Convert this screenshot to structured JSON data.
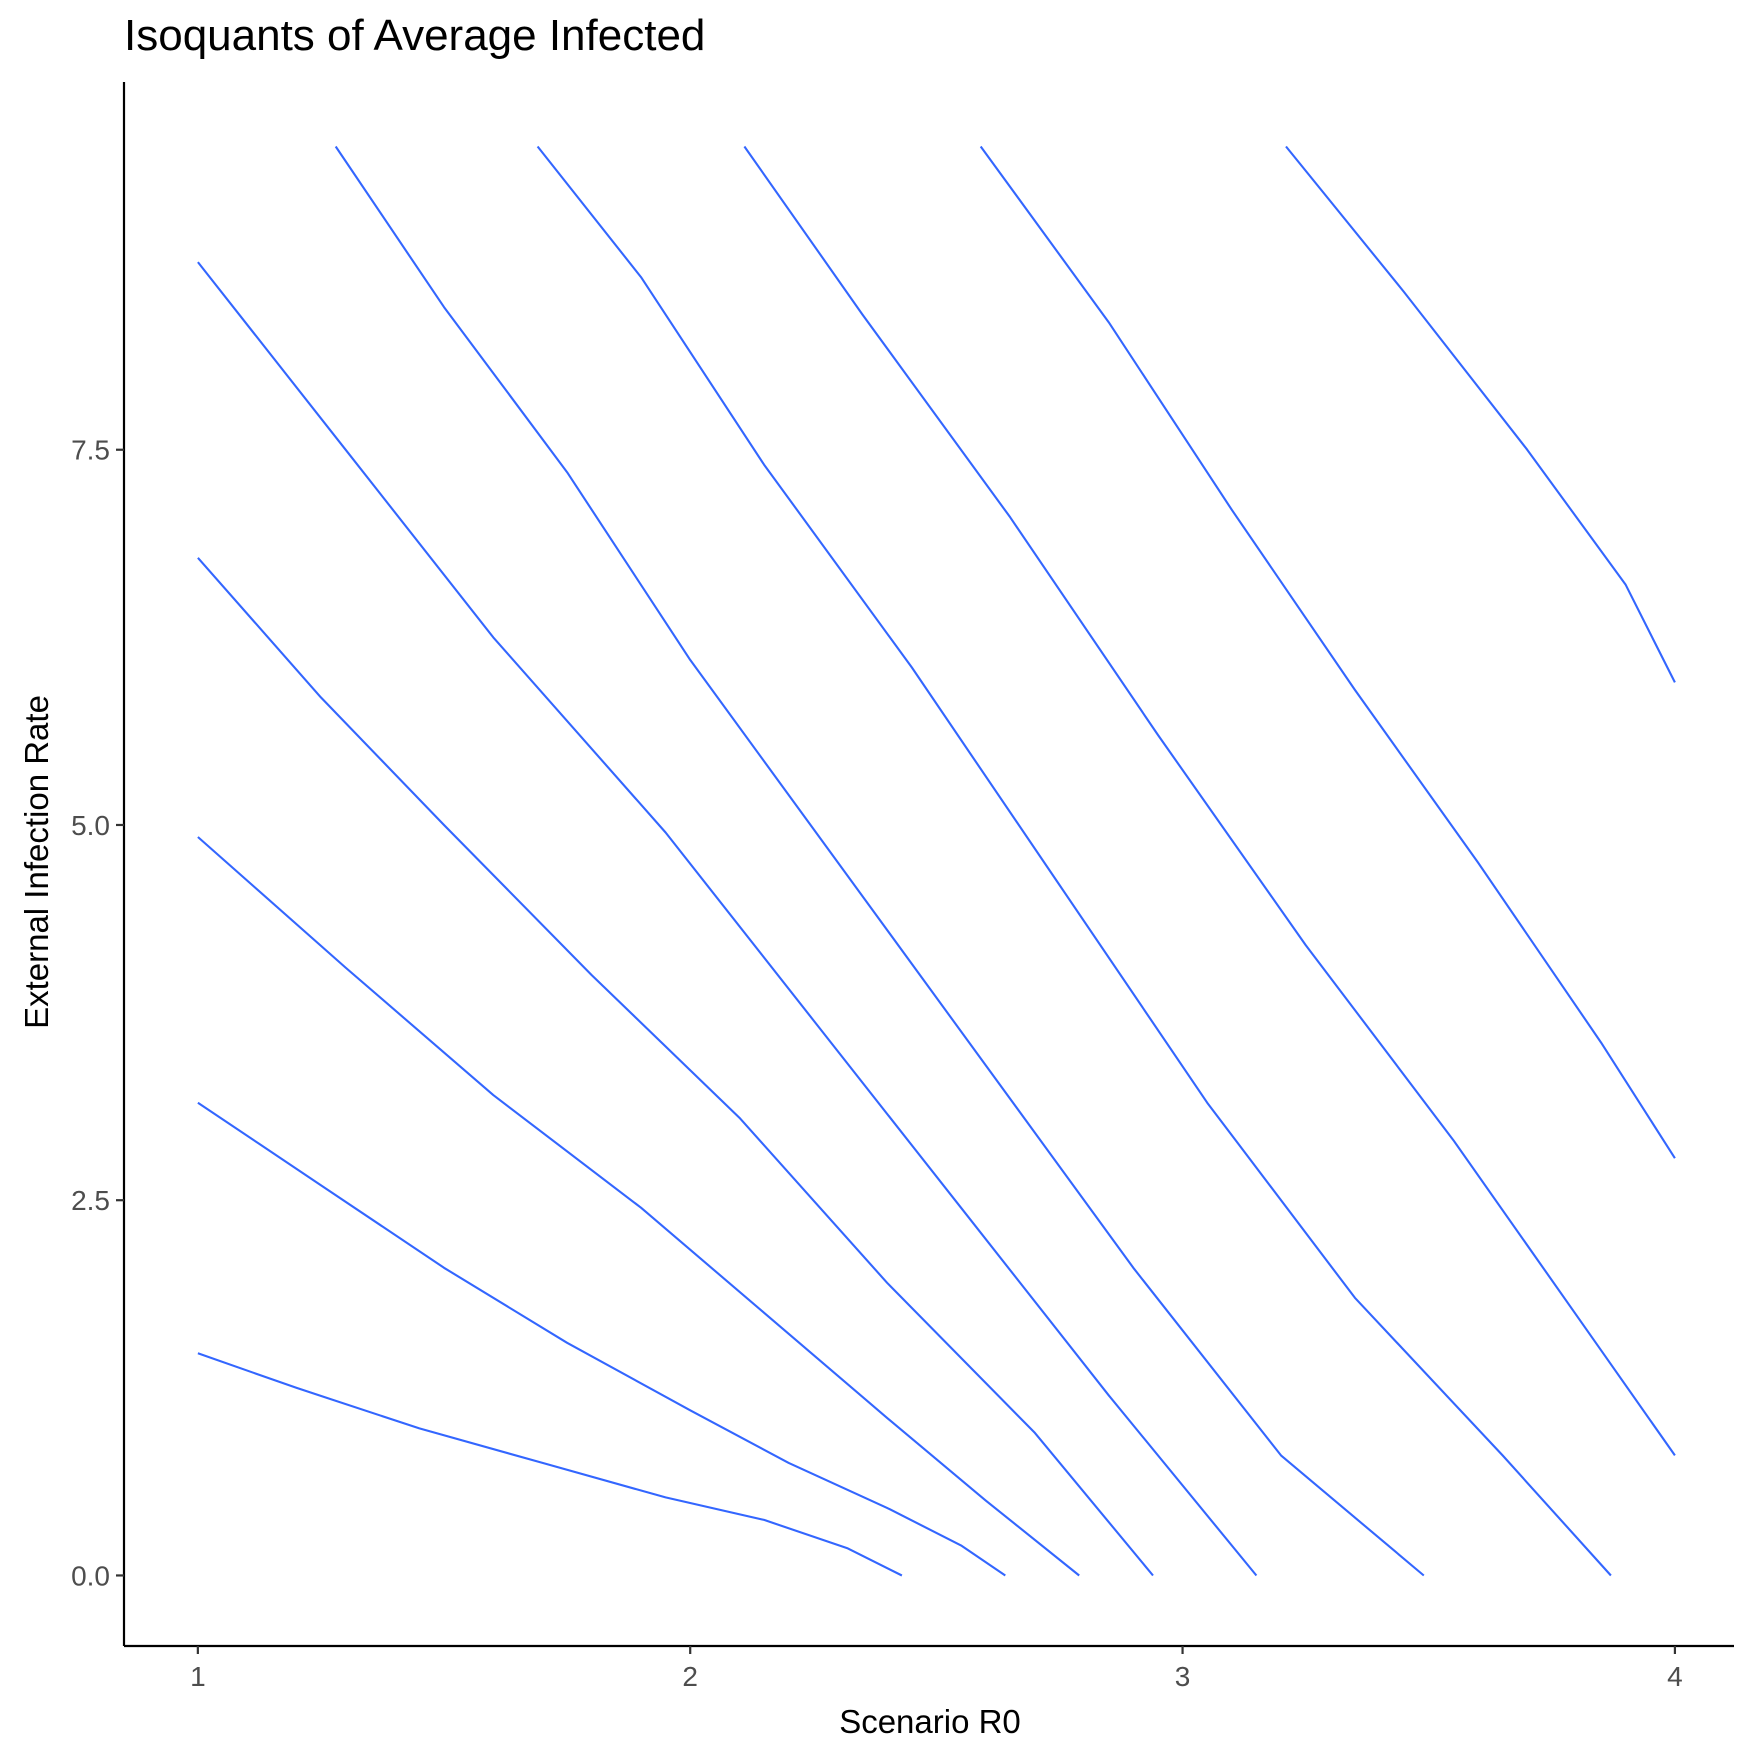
{
  "chart_data": {
    "type": "line",
    "title": "Isoquants of Average Infected",
    "xlabel": "Scenario R0",
    "ylabel": "External Infection Rate",
    "xlim": [
      0.85,
      4.12
    ],
    "ylim": [
      -0.47,
      9.95
    ],
    "x_ticks": [
      {
        "value": 1,
        "label": "1"
      },
      {
        "value": 2,
        "label": "2"
      },
      {
        "value": 3,
        "label": "3"
      },
      {
        "value": 4,
        "label": "4"
      }
    ],
    "y_ticks": [
      {
        "value": 0,
        "label": "0.0"
      },
      {
        "value": 2.5,
        "label": "2.5"
      },
      {
        "value": 5,
        "label": "5.0"
      },
      {
        "value": 7.5,
        "label": "7.5"
      }
    ],
    "grid": false,
    "legend": "none",
    "line_color": "#3366FF",
    "series": [
      {
        "points": [
          [
            1.0,
            1.48
          ],
          [
            1.2,
            1.25
          ],
          [
            1.45,
            0.98
          ],
          [
            1.7,
            0.75
          ],
          [
            1.95,
            0.52
          ],
          [
            2.15,
            0.37
          ],
          [
            2.32,
            0.18
          ],
          [
            2.43,
            0.0
          ]
        ]
      },
      {
        "points": [
          [
            1.0,
            3.15
          ],
          [
            1.25,
            2.6
          ],
          [
            1.5,
            2.05
          ],
          [
            1.75,
            1.55
          ],
          [
            2.0,
            1.1
          ],
          [
            2.2,
            0.75
          ],
          [
            2.4,
            0.45
          ],
          [
            2.55,
            0.2
          ],
          [
            2.64,
            0.0
          ]
        ]
      },
      {
        "points": [
          [
            1.0,
            4.92
          ],
          [
            1.3,
            4.05
          ],
          [
            1.6,
            3.2
          ],
          [
            1.9,
            2.45
          ],
          [
            2.15,
            1.75
          ],
          [
            2.4,
            1.05
          ],
          [
            2.6,
            0.5
          ],
          [
            2.79,
            0.0
          ]
        ]
      },
      {
        "points": [
          [
            1.0,
            6.78
          ],
          [
            1.25,
            5.85
          ],
          [
            1.5,
            5.0
          ],
          [
            1.8,
            4.0
          ],
          [
            2.1,
            3.05
          ],
          [
            2.4,
            1.95
          ],
          [
            2.7,
            0.95
          ],
          [
            2.94,
            0.0
          ]
        ]
      },
      {
        "points": [
          [
            1.0,
            8.75
          ],
          [
            1.3,
            7.5
          ],
          [
            1.6,
            6.25
          ],
          [
            1.95,
            4.95
          ],
          [
            2.25,
            3.7
          ],
          [
            2.55,
            2.45
          ],
          [
            2.85,
            1.2
          ],
          [
            3.15,
            0.0
          ]
        ]
      },
      {
        "points": [
          [
            1.28,
            9.52
          ],
          [
            1.5,
            8.45
          ],
          [
            1.75,
            7.35
          ],
          [
            2.0,
            6.1
          ],
          [
            2.3,
            4.75
          ],
          [
            2.6,
            3.4
          ],
          [
            2.9,
            2.05
          ],
          [
            3.2,
            0.8
          ],
          [
            3.49,
            0.0
          ]
        ]
      },
      {
        "points": [
          [
            1.69,
            9.52
          ],
          [
            1.9,
            8.65
          ],
          [
            2.15,
            7.4
          ],
          [
            2.45,
            6.05
          ],
          [
            2.75,
            4.6
          ],
          [
            3.05,
            3.15
          ],
          [
            3.35,
            1.85
          ],
          [
            3.65,
            0.8
          ],
          [
            3.87,
            0.0
          ]
        ]
      },
      {
        "points": [
          [
            2.11,
            9.52
          ],
          [
            2.35,
            8.4
          ],
          [
            2.65,
            7.05
          ],
          [
            2.95,
            5.6
          ],
          [
            3.25,
            4.2
          ],
          [
            3.55,
            2.9
          ],
          [
            3.85,
            1.5
          ],
          [
            4.0,
            0.8
          ]
        ]
      },
      {
        "points": [
          [
            2.59,
            9.52
          ],
          [
            2.85,
            8.35
          ],
          [
            3.1,
            7.1
          ],
          [
            3.35,
            5.9
          ],
          [
            3.6,
            4.75
          ],
          [
            3.85,
            3.55
          ],
          [
            4.0,
            2.78
          ]
        ]
      },
      {
        "points": [
          [
            3.21,
            9.52
          ],
          [
            3.45,
            8.55
          ],
          [
            3.7,
            7.5
          ],
          [
            3.9,
            6.6
          ],
          [
            4.0,
            5.95
          ]
        ]
      }
    ]
  }
}
